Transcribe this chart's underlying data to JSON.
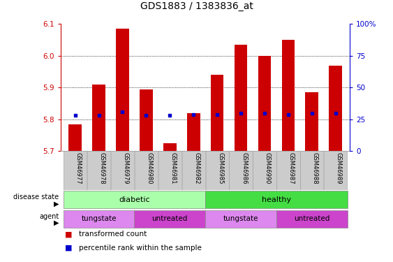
{
  "title": "GDS1883 / 1383836_at",
  "samples": [
    "GSM46977",
    "GSM46978",
    "GSM46979",
    "GSM46980",
    "GSM46981",
    "GSM46982",
    "GSM46985",
    "GSM46986",
    "GSM46990",
    "GSM46987",
    "GSM46988",
    "GSM46989"
  ],
  "transformed_count": [
    5.785,
    5.91,
    6.085,
    5.895,
    5.725,
    5.82,
    5.94,
    6.035,
    6.0,
    6.05,
    5.885,
    5.97
  ],
  "percentile_rank": [
    28,
    28,
    31,
    28,
    28,
    29,
    29,
    30,
    30,
    29,
    30,
    30
  ],
  "y_min": 5.7,
  "y_max": 6.1,
  "y_ticks": [
    5.7,
    5.8,
    5.9,
    6.0,
    6.1
  ],
  "right_y_ticks": [
    0,
    25,
    50,
    75,
    100
  ],
  "bar_color": "#cc0000",
  "dot_color": "#0000cc",
  "left_axis_color": "#cc0000",
  "right_axis_color": "#0000cc",
  "diabetic_color": "#aaffaa",
  "healthy_color": "#44dd44",
  "tungstate_color": "#dd88ee",
  "untreated_color": "#cc44cc",
  "xtick_bg": "#cccccc",
  "grid_color": "#000000",
  "agent_groups": [
    {
      "label": "tungstate",
      "start": 0,
      "end": 2
    },
    {
      "label": "untreated",
      "start": 3,
      "end": 5
    },
    {
      "label": "tungstate",
      "start": 6,
      "end": 8
    },
    {
      "label": "untreated",
      "start": 9,
      "end": 11
    }
  ],
  "disease_groups": [
    {
      "label": "diabetic",
      "start": 0,
      "end": 5
    },
    {
      "label": "healthy",
      "start": 6,
      "end": 11
    }
  ]
}
